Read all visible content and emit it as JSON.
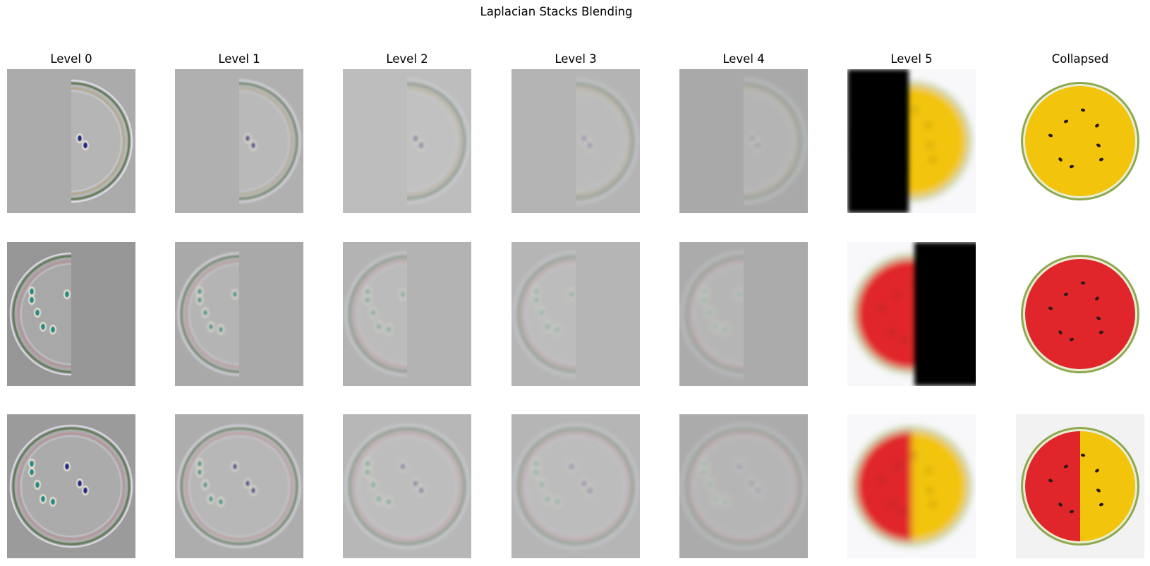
{
  "figure": {
    "title": "Laplacian Stacks Blending",
    "columns": [
      "Level 0",
      "Level 1",
      "Level 2",
      "Level 3",
      "Level 4",
      "Level 5",
      "Collapsed"
    ],
    "rows": [
      {
        "row": "yellow-watermelon-masked",
        "panels": [
          {
            "kind": "laplacian",
            "content": "right-half",
            "bg": "#ababab",
            "blur": 0.4
          },
          {
            "kind": "laplacian",
            "content": "right-half",
            "bg": "#b0b0b0",
            "blur": 1.6
          },
          {
            "kind": "laplacian",
            "content": "right-half",
            "bg": "#bdbdbd",
            "blur": 2.6
          },
          {
            "kind": "laplacian",
            "content": "right-half",
            "bg": "#b4b4b4",
            "blur": 3.2
          },
          {
            "kind": "laplacian",
            "content": "right-half",
            "bg": "#a9a9a9",
            "blur": 3.8
          },
          {
            "kind": "gaussian",
            "fruit": "yellow",
            "mask": "left-black"
          },
          {
            "kind": "collapsed",
            "fruit": "yellow"
          }
        ]
      },
      {
        "row": "red-watermelon-masked",
        "panels": [
          {
            "kind": "laplacian",
            "content": "left-half",
            "bg": "#969696",
            "blur": 0.4
          },
          {
            "kind": "laplacian",
            "content": "left-half",
            "bg": "#a9a9a9",
            "blur": 1.6
          },
          {
            "kind": "laplacian",
            "content": "left-half",
            "bg": "#b3b3b3",
            "blur": 2.6
          },
          {
            "kind": "laplacian",
            "content": "left-half",
            "bg": "#b5b5b5",
            "blur": 3.2
          },
          {
            "kind": "laplacian",
            "content": "left-half",
            "bg": "#ababab",
            "blur": 3.8
          },
          {
            "kind": "gaussian",
            "fruit": "red",
            "mask": "right-black"
          },
          {
            "kind": "collapsed",
            "fruit": "red"
          }
        ]
      },
      {
        "row": "blended",
        "panels": [
          {
            "kind": "laplacian",
            "content": "full",
            "bg": "#9b9b9b",
            "blur": 0.4
          },
          {
            "kind": "laplacian",
            "content": "full",
            "bg": "#adadad",
            "blur": 1.6
          },
          {
            "kind": "laplacian",
            "content": "full",
            "bg": "#b7b7b7",
            "blur": 2.6
          },
          {
            "kind": "laplacian",
            "content": "full",
            "bg": "#b5b5b5",
            "blur": 3.2
          },
          {
            "kind": "laplacian",
            "content": "full",
            "bg": "#ababab",
            "blur": 3.8
          },
          {
            "kind": "gaussian",
            "fruit": "blend",
            "mask": "none"
          },
          {
            "kind": "collapsed",
            "fruit": "blend"
          }
        ]
      }
    ],
    "colors": {
      "red_flesh": "#e0262a",
      "yellow_flesh": "#f2c40c",
      "rind": "#8ea84f",
      "seed": "#2a1a14",
      "lap_dot_blue": "#1f2a8a",
      "lap_dot_teal": "#1b8a8a",
      "lap_ring_green": "#5f7a55",
      "lap_ring_red": "#c4808a",
      "lap_ring_gold": "#b4a060"
    }
  }
}
